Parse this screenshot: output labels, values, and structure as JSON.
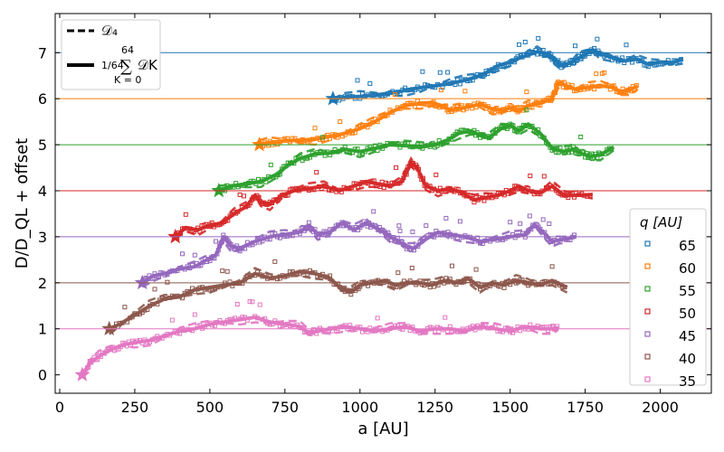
{
  "chart_data": {
    "type": "line",
    "xlabel": "a [AU]",
    "ylabel": "D/D_QL + offset",
    "xlim": [
      -15,
      2170
    ],
    "ylim": [
      -0.4,
      7.85
    ],
    "xticks": [
      0,
      250,
      500,
      750,
      1000,
      1250,
      1500,
      1750,
      2000
    ],
    "yticks": [
      0,
      1,
      2,
      3,
      4,
      5,
      6,
      7
    ],
    "grid": false,
    "legend_top": {
      "placement": "top-left",
      "dashed_label": "𝒟₄",
      "solid_label_prefix": "1/64",
      "solid_sum_upper": "64",
      "solid_sum_lower": "K = 0",
      "solid_label_suffix": "𝒟K"
    },
    "legend_q": {
      "placement": "center-right",
      "title": "q  [AU]"
    },
    "series": [
      {
        "name": "65",
        "color": "#1f77b4",
        "offset": 6,
        "start": 910,
        "x": [
          910,
          950,
          1000,
          1050,
          1100,
          1150,
          1200,
          1250,
          1300,
          1350,
          1400,
          1430,
          1460,
          1500,
          1530,
          1560,
          1590,
          1610,
          1630,
          1650,
          1670,
          1700,
          1720,
          1740,
          1760,
          1780,
          1800,
          1840,
          1880,
          1920,
          1960,
          2000,
          2040,
          2075
        ],
        "y": [
          6.0,
          6.03,
          6.05,
          6.08,
          6.12,
          6.18,
          6.24,
          6.28,
          6.33,
          6.4,
          6.5,
          6.6,
          6.72,
          6.8,
          6.88,
          6.95,
          7.02,
          7.0,
          6.95,
          6.85,
          6.72,
          6.78,
          6.85,
          6.92,
          7.02,
          7.05,
          6.98,
          6.9,
          6.82,
          6.86,
          6.75,
          6.8,
          6.78,
          6.88
        ]
      },
      {
        "name": "60",
        "color": "#ff7f0e",
        "offset": 5,
        "start": 665,
        "x": [
          665,
          700,
          750,
          800,
          850,
          900,
          950,
          1000,
          1050,
          1100,
          1150,
          1200,
          1240,
          1270,
          1300,
          1330,
          1360,
          1400,
          1440,
          1470,
          1500,
          1530,
          1560,
          1600,
          1640,
          1660,
          1680,
          1720,
          1760,
          1800,
          1840,
          1870,
          1900,
          1925
        ],
        "y": [
          5.0,
          5.05,
          5.08,
          5.1,
          5.12,
          5.18,
          5.25,
          5.35,
          5.5,
          5.7,
          5.85,
          5.9,
          5.92,
          5.85,
          5.75,
          5.78,
          5.82,
          5.88,
          5.78,
          5.75,
          5.8,
          5.74,
          5.85,
          5.9,
          6.0,
          6.35,
          6.3,
          6.2,
          6.25,
          6.28,
          6.25,
          6.15,
          6.2,
          6.28
        ]
      },
      {
        "name": "55",
        "color": "#2ca02c",
        "offset": 4,
        "start": 530,
        "x": [
          530,
          570,
          620,
          670,
          720,
          760,
          800,
          850,
          900,
          950,
          1000,
          1050,
          1100,
          1150,
          1200,
          1250,
          1290,
          1330,
          1370,
          1400,
          1430,
          1470,
          1500,
          1530,
          1560,
          1600,
          1640,
          1680,
          1710,
          1740,
          1770,
          1800,
          1845
        ],
        "y": [
          4.0,
          4.1,
          4.15,
          4.2,
          4.35,
          4.55,
          4.7,
          4.8,
          4.82,
          4.9,
          4.85,
          4.92,
          5.0,
          4.98,
          4.95,
          5.0,
          5.1,
          5.25,
          5.3,
          5.2,
          5.15,
          5.35,
          5.42,
          5.3,
          5.45,
          5.25,
          4.92,
          4.85,
          4.9,
          4.8,
          4.75,
          4.78,
          4.95
        ]
      },
      {
        "name": "50",
        "color": "#d62728",
        "offset": 3,
        "start": 385,
        "x": [
          385,
          420,
          460,
          500,
          540,
          580,
          620,
          650,
          670,
          700,
          740,
          780,
          830,
          880,
          930,
          980,
          1020,
          1060,
          1100,
          1140,
          1170,
          1190,
          1220,
          1260,
          1300,
          1340,
          1380,
          1420,
          1460,
          1500,
          1530,
          1560,
          1600,
          1640,
          1680,
          1720,
          1775
        ],
        "y": [
          3.0,
          3.2,
          3.15,
          3.25,
          3.3,
          3.5,
          3.65,
          3.9,
          3.75,
          3.7,
          3.9,
          4.0,
          4.05,
          4.1,
          4.0,
          4.1,
          4.2,
          4.15,
          4.1,
          4.2,
          4.6,
          4.5,
          4.1,
          4.0,
          4.05,
          3.95,
          3.8,
          3.85,
          3.9,
          4.0,
          4.1,
          4.0,
          3.95,
          4.1,
          3.9,
          3.9,
          3.92
        ]
      },
      {
        "name": "45",
        "color": "#9467bd",
        "offset": 2,
        "start": 275,
        "x": [
          275,
          310,
          350,
          400,
          450,
          490,
          520,
          545,
          570,
          600,
          650,
          700,
          750,
          800,
          830,
          860,
          900,
          940,
          980,
          1020,
          1050,
          1080,
          1100,
          1130,
          1150,
          1180,
          1220,
          1260,
          1300,
          1350,
          1400,
          1450,
          1500,
          1550,
          1580,
          1610,
          1640,
          1680,
          1720
        ],
        "y": [
          2.0,
          2.15,
          2.2,
          2.3,
          2.35,
          2.5,
          2.6,
          3.0,
          2.8,
          2.75,
          2.9,
          3.0,
          3.05,
          3.1,
          3.25,
          3.05,
          3.1,
          3.3,
          3.15,
          3.3,
          3.2,
          3.1,
          3.0,
          2.9,
          2.8,
          2.75,
          2.95,
          3.1,
          3.05,
          3.0,
          2.9,
          2.95,
          3.0,
          3.05,
          3.25,
          3.1,
          2.9,
          2.95,
          3.0
        ]
      },
      {
        "name": "40",
        "color": "#8c564b",
        "offset": 1,
        "start": 165,
        "x": [
          165,
          200,
          250,
          300,
          350,
          400,
          450,
          500,
          550,
          600,
          650,
          700,
          750,
          800,
          850,
          900,
          940,
          970,
          1000,
          1040,
          1080,
          1120,
          1160,
          1200,
          1240,
          1280,
          1320,
          1360,
          1400,
          1440,
          1480,
          1520,
          1560,
          1600,
          1640,
          1690
        ],
        "y": [
          1.0,
          1.1,
          1.3,
          1.5,
          1.65,
          1.7,
          1.85,
          1.9,
          1.95,
          2.0,
          2.2,
          2.1,
          2.15,
          2.25,
          2.2,
          2.1,
          1.85,
          1.8,
          1.95,
          2.0,
          2.05,
          1.95,
          2.0,
          2.0,
          1.95,
          2.05,
          2.0,
          2.1,
          1.9,
          2.0,
          1.95,
          2.05,
          2.0,
          1.95,
          2.05,
          1.9
        ]
      },
      {
        "name": "35",
        "color": "#e377c2",
        "offset": 0,
        "start": 75,
        "x": [
          75,
          100,
          130,
          170,
          210,
          250,
          300,
          350,
          400,
          450,
          500,
          550,
          600,
          650,
          700,
          750,
          800,
          830,
          860,
          900,
          950,
          1000,
          1050,
          1100,
          1150,
          1200,
          1250,
          1300,
          1350,
          1400,
          1450,
          1500,
          1550,
          1600,
          1640,
          1660
        ],
        "y": [
          0.0,
          0.25,
          0.4,
          0.55,
          0.65,
          0.7,
          0.75,
          0.85,
          0.95,
          1.0,
          1.1,
          1.15,
          1.2,
          1.25,
          1.15,
          1.1,
          1.05,
          0.9,
          0.95,
          1.0,
          1.05,
          1.0,
          0.95,
          1.0,
          1.05,
          0.95,
          1.0,
          1.0,
          0.95,
          1.05,
          1.0,
          0.95,
          1.05,
          1.0,
          1.0,
          1.0
        ]
      }
    ]
  }
}
